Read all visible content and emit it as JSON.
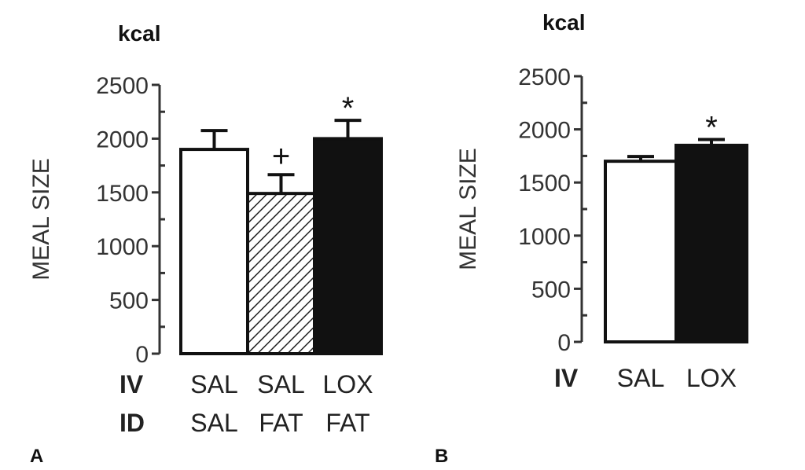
{
  "chart_data": [
    {
      "type": "bar",
      "panel_label": "A",
      "unit_label": "kcal",
      "ylabel": "MEAL SIZE",
      "ylim": [
        0,
        2500
      ],
      "yticks": [
        0,
        500,
        1000,
        1500,
        2000,
        2500
      ],
      "row_labels": [
        "IV",
        "ID"
      ],
      "categories": [
        [
          "SAL",
          "SAL"
        ],
        [
          "SAL",
          "FAT"
        ],
        [
          "LOX",
          "FAT"
        ]
      ],
      "values": [
        1900,
        1490,
        2000
      ],
      "errors": [
        175,
        175,
        170
      ],
      "fills": [
        "white",
        "hatch",
        "black"
      ],
      "annotations": [
        "",
        "+",
        "*"
      ]
    },
    {
      "type": "bar",
      "panel_label": "B",
      "unit_label": "kcal",
      "ylabel": "MEAL SIZE",
      "ylim": [
        0,
        2500
      ],
      "yticks": [
        0,
        500,
        1000,
        1500,
        2000,
        2500
      ],
      "row_labels": [
        "IV"
      ],
      "categories": [
        [
          "SAL"
        ],
        [
          "LOX"
        ]
      ],
      "values": [
        1700,
        1850
      ],
      "errors": [
        45,
        55
      ],
      "fills": [
        "white",
        "black"
      ],
      "annotations": [
        "",
        "*"
      ]
    }
  ],
  "colors": {
    "ink": "#111111",
    "axis": "#333333",
    "fill_dark": "#111111",
    "fill_light": "#ffffff"
  }
}
